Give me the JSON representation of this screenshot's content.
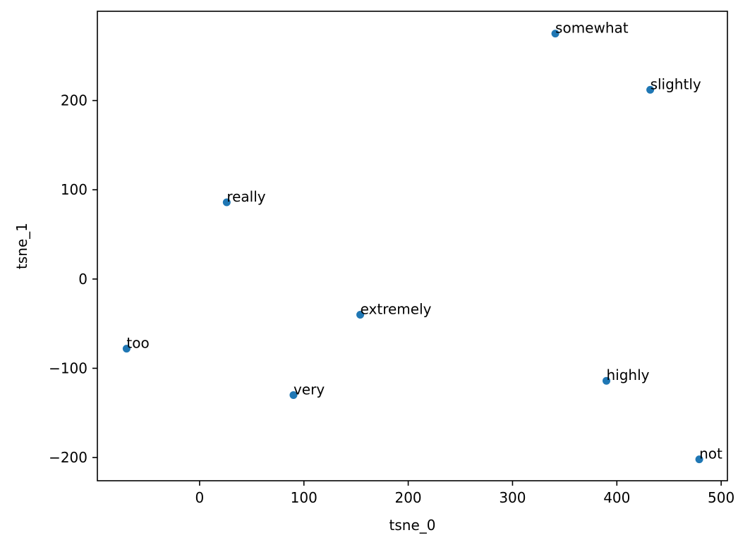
{
  "chart_data": {
    "type": "scatter",
    "xlabel": "tsne_0",
    "ylabel": "tsne_1",
    "xlim": [
      -98,
      506
    ],
    "ylim": [
      -226,
      300
    ],
    "x_ticks": [
      0,
      100,
      200,
      300,
      400,
      500
    ],
    "y_ticks": [
      -200,
      -100,
      0,
      100,
      200
    ],
    "x_tick_labels": [
      "0",
      "100",
      "200",
      "300",
      "400",
      "500"
    ],
    "y_tick_labels": [
      "−200",
      "−100",
      "0",
      "100",
      "200"
    ],
    "grid": false,
    "point_color": "#1f77b4",
    "points": [
      {
        "label": "somewhat",
        "x": 341,
        "y": 275
      },
      {
        "label": "slightly",
        "x": 432,
        "y": 212
      },
      {
        "label": "really",
        "x": 26,
        "y": 86
      },
      {
        "label": "extremely",
        "x": 154,
        "y": -40
      },
      {
        "label": "too",
        "x": -70,
        "y": -78
      },
      {
        "label": "very",
        "x": 90,
        "y": -130
      },
      {
        "label": "highly",
        "x": 390,
        "y": -114
      },
      {
        "label": "not",
        "x": 479,
        "y": -202
      }
    ]
  }
}
